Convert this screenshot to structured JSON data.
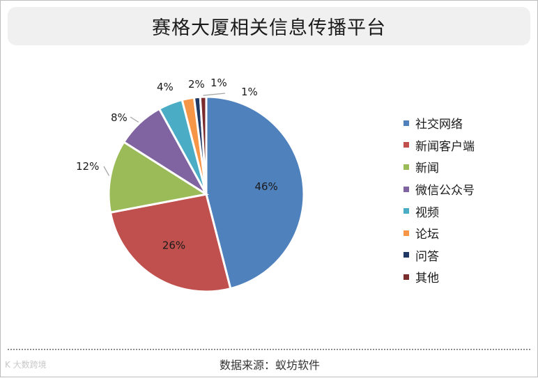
{
  "chart_data": {
    "type": "pie",
    "title": "赛格大厦相关信息传播平台",
    "categories": [
      "社交网络",
      "新闻客户端",
      "新闻",
      "微信公众号",
      "视频",
      "论坛",
      "问答",
      "其他"
    ],
    "values": [
      46,
      26,
      12,
      8,
      4,
      2,
      1,
      1
    ],
    "labels": [
      "46%",
      "26%",
      "12%",
      "8%",
      "4%",
      "2%",
      "1%",
      "1%"
    ],
    "colors": [
      "#4f81bd",
      "#c0504d",
      "#9bbb59",
      "#8064a2",
      "#4bacc6",
      "#f79646",
      "#1f3864",
      "#7b2c2c"
    ],
    "legend_position": "right"
  },
  "source_text": "数据来源：蚁坊软件",
  "watermark_text": "K 大数跨境"
}
